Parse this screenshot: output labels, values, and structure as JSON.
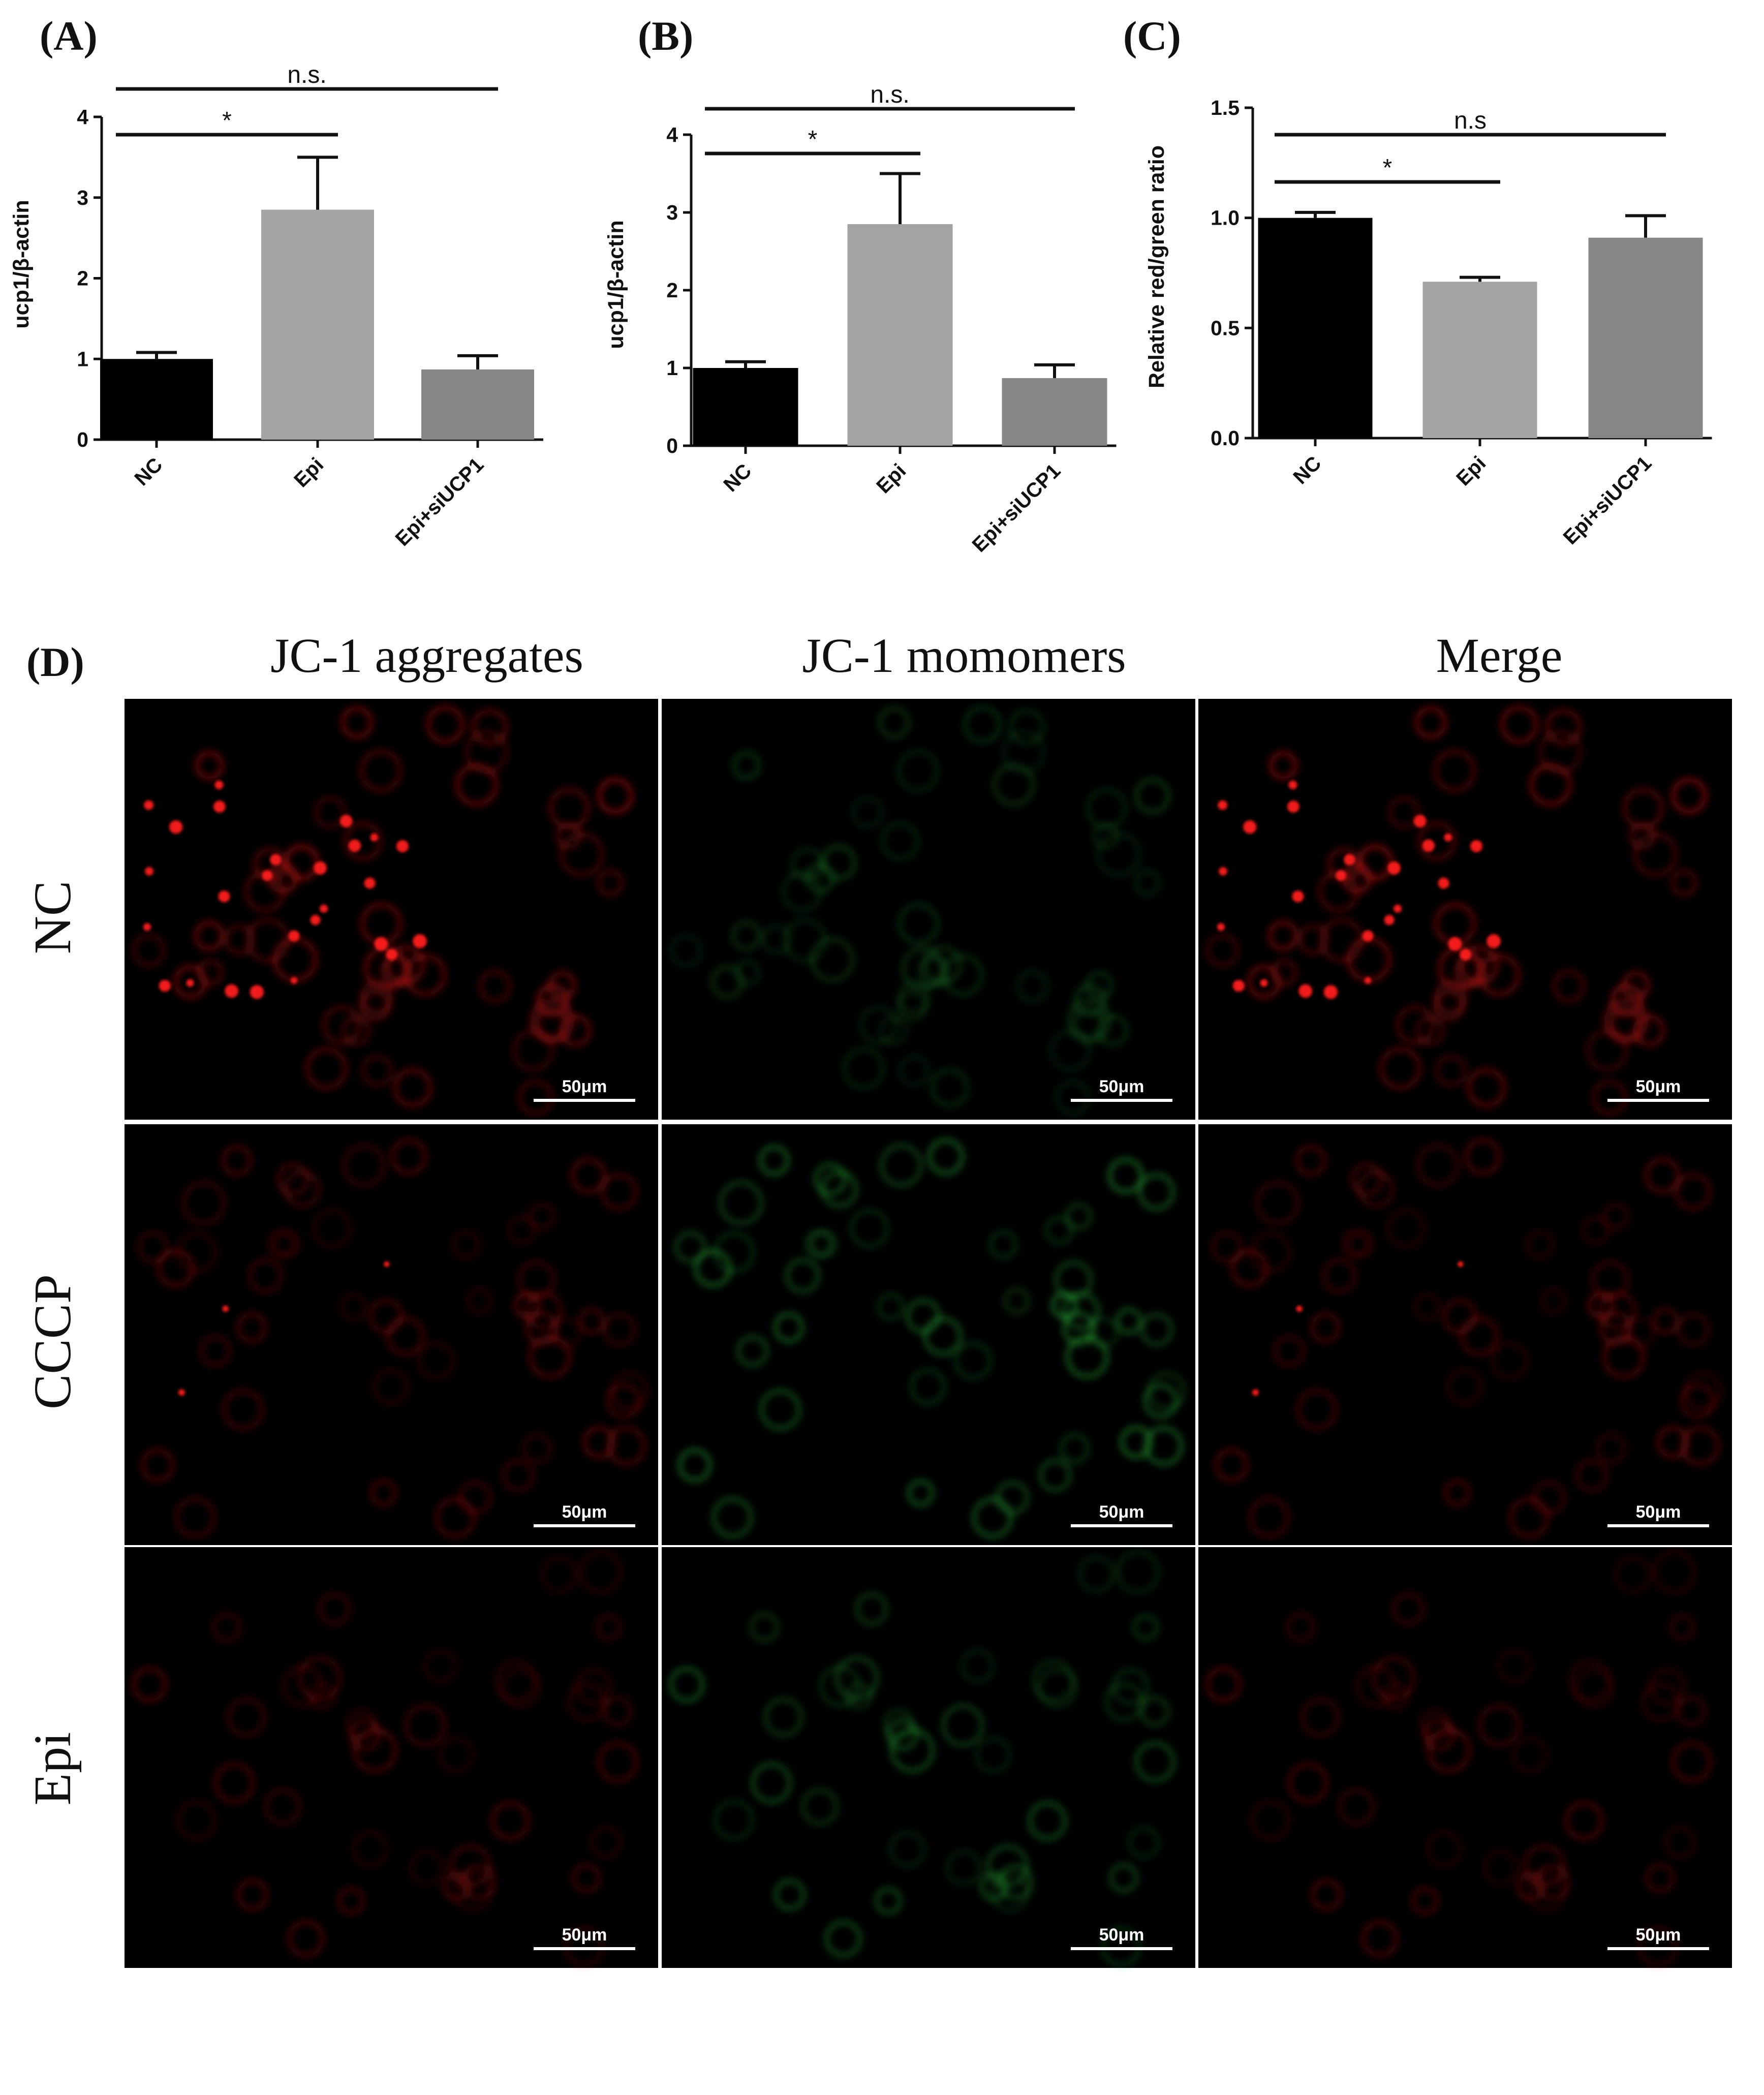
{
  "panel_labels": {
    "a": "(A)",
    "b": "(B)",
    "c": "(C)",
    "d": "(D)"
  },
  "chart_data": [
    {
      "id": "A",
      "type": "bar",
      "categories": [
        "NC",
        "Epi",
        "Epi+siUCP1"
      ],
      "values": [
        1.0,
        2.85,
        0.87
      ],
      "errors": [
        0.08,
        0.65,
        0.17
      ],
      "ylabel": "ucp1/β-actin",
      "ylim": [
        0,
        4
      ],
      "yticks": [
        "0",
        "1",
        "2",
        "3",
        "4"
      ],
      "bar_colors": [
        "#000000",
        "#a3a3a6",
        "#878787"
      ],
      "annotations": [
        {
          "from": "NC",
          "to": "Epi",
          "label": "*"
        },
        {
          "from": "NC",
          "to": "Epi+siUCP1",
          "label": "n.s."
        }
      ]
    },
    {
      "id": "B",
      "type": "bar",
      "categories": [
        "NC",
        "Epi",
        "Epi+siUCP1"
      ],
      "values": [
        1.0,
        2.85,
        0.87
      ],
      "errors": [
        0.08,
        0.65,
        0.17
      ],
      "ylabel": "ucp1/β-actin",
      "ylim": [
        0,
        4
      ],
      "yticks": [
        "0",
        "1",
        "2",
        "3",
        "4"
      ],
      "bar_colors": [
        "#000000",
        "#a3a3a6",
        "#878787"
      ],
      "annotations": [
        {
          "from": "NC",
          "to": "Epi",
          "label": "*"
        },
        {
          "from": "NC",
          "to": "Epi+siUCP1",
          "label": "n.s."
        }
      ]
    },
    {
      "id": "C",
      "type": "bar",
      "categories": [
        "NC",
        "Epi",
        "Epi+siUCP1"
      ],
      "values": [
        1.0,
        0.71,
        0.91
      ],
      "errors": [
        0.025,
        0.02,
        0.1
      ],
      "ylabel": "Relative red/green ratio",
      "ylim": [
        0,
        1.5
      ],
      "yticks": [
        "0.0",
        "0.5",
        "1.0",
        "1.5"
      ],
      "bar_colors": [
        "#000000",
        "#a3a3a6",
        "#878787"
      ],
      "annotations": [
        {
          "from": "NC",
          "to": "Epi",
          "label": "*"
        },
        {
          "from": "NC",
          "to": "Epi+siUCP1",
          "label": "n.s"
        }
      ]
    }
  ],
  "micrographs": {
    "columns": [
      "JC-1 aggregates",
      "JC-1 momomers",
      "Merge"
    ],
    "rows": [
      "NC",
      "CCCP",
      "Epi"
    ],
    "scale_bar": "50μm",
    "channel_colors": {
      "red": "#ff1a1a",
      "green": "#2ecc40"
    },
    "intensity": {
      "NC": {
        "red": 0.9,
        "green": 0.25
      },
      "CCCP": {
        "red": 0.35,
        "green": 0.8
      },
      "Epi": {
        "red": 0.3,
        "green": 0.55
      }
    }
  }
}
